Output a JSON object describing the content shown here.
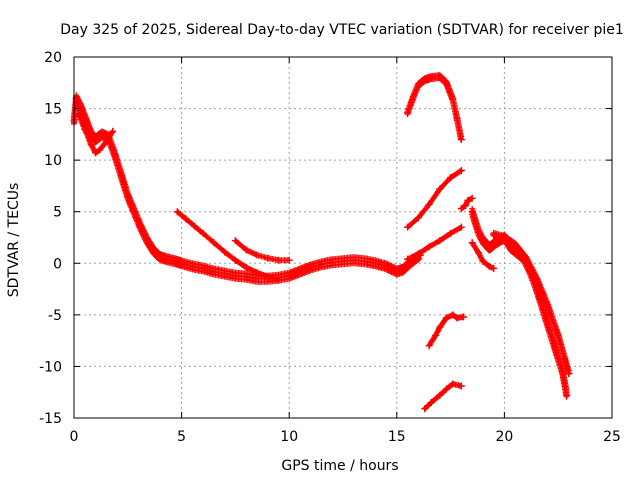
{
  "chart_data": {
    "type": "scatter",
    "title": "Day 325 of 2025, Sidereal Day-to-day VTEC variation (SDTVAR) for receiver pie1",
    "xlabel": "GPS time / hours",
    "ylabel": "SDTVAR / TECUs",
    "xlim": [
      0,
      25
    ],
    "ylim": [
      -15,
      20
    ],
    "xticks": [
      0,
      5,
      10,
      15,
      20,
      25
    ],
    "yticks": [
      -15,
      -10,
      -5,
      0,
      5,
      10,
      15,
      20
    ],
    "xtick_labels": [
      "0",
      "5",
      "10",
      "15",
      "20",
      "25"
    ],
    "ytick_labels": [
      "-15",
      "-10",
      "-5",
      "0",
      "5",
      "10",
      "15",
      "20"
    ],
    "grid": true,
    "marker": "+",
    "color": "#ff0000",
    "series": [
      {
        "name": "track-main-decay",
        "thick": 3,
        "x": [
          0,
          0.1,
          0.3,
          0.6,
          0.8,
          1.0,
          1.3,
          1.6,
          1.9,
          2.2,
          2.5,
          2.8,
          3.1,
          3.4,
          3.7,
          4.0,
          4.3,
          4.7,
          5.0,
          5.5,
          6.0,
          6.5,
          7.0,
          7.5,
          8.0,
          8.5,
          9.0,
          9.5,
          10.0,
          10.5,
          11.0,
          11.5,
          12.0,
          12.5,
          13.0,
          13.5,
          14.0,
          14.5,
          15.0,
          15.3,
          15.6,
          15.9,
          16.1
        ],
        "y": [
          13.8,
          16.0,
          15.2,
          13.6,
          12.5,
          12.0,
          12.5,
          12.2,
          10.5,
          8.5,
          6.5,
          5.0,
          3.5,
          2.2,
          1.2,
          0.6,
          0.4,
          0.2,
          0.0,
          -0.3,
          -0.5,
          -0.8,
          -1.0,
          -1.2,
          -1.3,
          -1.5,
          -1.5,
          -1.4,
          -1.2,
          -0.8,
          -0.4,
          -0.1,
          0.1,
          0.2,
          0.3,
          0.2,
          0.0,
          -0.3,
          -0.8,
          -0.6,
          0.0,
          0.5,
          0.8
        ]
      },
      {
        "name": "track-early-dip",
        "thick": 1,
        "x": [
          0.2,
          0.5,
          0.8,
          1.0,
          1.2,
          1.5,
          1.8
        ],
        "y": [
          14.5,
          13.0,
          11.5,
          10.7,
          11.0,
          11.8,
          12.8
        ]
      },
      {
        "name": "track-diagonal-5h",
        "thick": 1,
        "x": [
          4.8,
          5.2,
          5.6,
          6.0,
          6.5,
          7.0,
          7.5,
          8.0,
          8.5,
          9.0,
          9.5
        ],
        "y": [
          5.0,
          4.3,
          3.6,
          2.9,
          2.0,
          1.1,
          0.3,
          -0.4,
          -0.9,
          -1.3,
          -1.6
        ]
      },
      {
        "name": "track-7p5h",
        "thick": 1,
        "x": [
          7.5,
          8.0,
          8.5,
          9.0,
          9.5,
          10.0
        ],
        "y": [
          2.2,
          1.3,
          0.8,
          0.5,
          0.3,
          0.3
        ]
      },
      {
        "name": "track-15h-rise-upper",
        "thick": 1,
        "x": [
          15.5,
          16.0,
          16.5,
          17.0,
          17.5,
          18.0
        ],
        "y": [
          3.5,
          4.4,
          5.7,
          7.2,
          8.3,
          9.0
        ]
      },
      {
        "name": "track-15h-rise-lower",
        "thick": 1,
        "x": [
          15.5,
          16.0,
          16.5,
          17.0,
          17.5,
          18.0
        ],
        "y": [
          0.4,
          0.9,
          1.6,
          2.2,
          2.9,
          3.5
        ]
      },
      {
        "name": "track-arc-top",
        "thick": 2,
        "x": [
          15.5,
          15.8,
          16.0,
          16.3,
          16.6,
          17.0,
          17.3,
          17.6,
          17.8,
          18.0
        ],
        "y": [
          14.6,
          16.3,
          17.3,
          17.8,
          18.0,
          18.1,
          17.5,
          15.9,
          14.0,
          12.0
        ]
      },
      {
        "name": "track-16h-dash-mid",
        "thick": 1,
        "x": [
          16.5,
          16.8,
          17.0,
          17.3,
          17.6,
          17.8,
          18.1
        ],
        "y": [
          -8.0,
          -7.0,
          -6.2,
          -5.3,
          -5.0,
          -5.3,
          -5.2
        ]
      },
      {
        "name": "track-16h-dash-low",
        "thick": 1,
        "x": [
          16.3,
          16.6,
          17.0,
          17.3,
          17.6,
          18.0
        ],
        "y": [
          -14.1,
          -13.5,
          -12.8,
          -12.2,
          -11.7,
          -11.9
        ]
      },
      {
        "name": "track-18h-small",
        "thick": 1,
        "x": [
          18.0,
          18.2,
          18.3,
          18.5
        ],
        "y": [
          5.3,
          5.6,
          6.1,
          6.3
        ]
      },
      {
        "name": "track-19h-descent",
        "thick": 3,
        "x": [
          18.5,
          18.8,
          19.0,
          19.3,
          19.6,
          20.0,
          20.3,
          20.6,
          20.9,
          21.2,
          21.5,
          21.8,
          22.1,
          22.4,
          22.7,
          22.9
        ],
        "y": [
          5.0,
          3.0,
          2.2,
          1.5,
          2.0,
          2.5,
          1.5,
          1.0,
          0.5,
          -0.8,
          -2.5,
          -4.5,
          -6.5,
          -8.5,
          -10.5,
          -12.8
        ]
      },
      {
        "name": "track-19h-branch",
        "thick": 1,
        "x": [
          18.5,
          18.8,
          19.0,
          19.3,
          19.5
        ],
        "y": [
          2.0,
          1.0,
          0.2,
          -0.3,
          -0.5
        ]
      },
      {
        "name": "track-20h-parallel",
        "thick": 2,
        "x": [
          19.5,
          20.0,
          20.5,
          21.0,
          21.5,
          22.0,
          22.5,
          22.8,
          23.0
        ],
        "y": [
          2.8,
          2.5,
          1.8,
          0.5,
          -1.5,
          -4.0,
          -7.0,
          -9.2,
          -10.7
        ]
      }
    ]
  }
}
